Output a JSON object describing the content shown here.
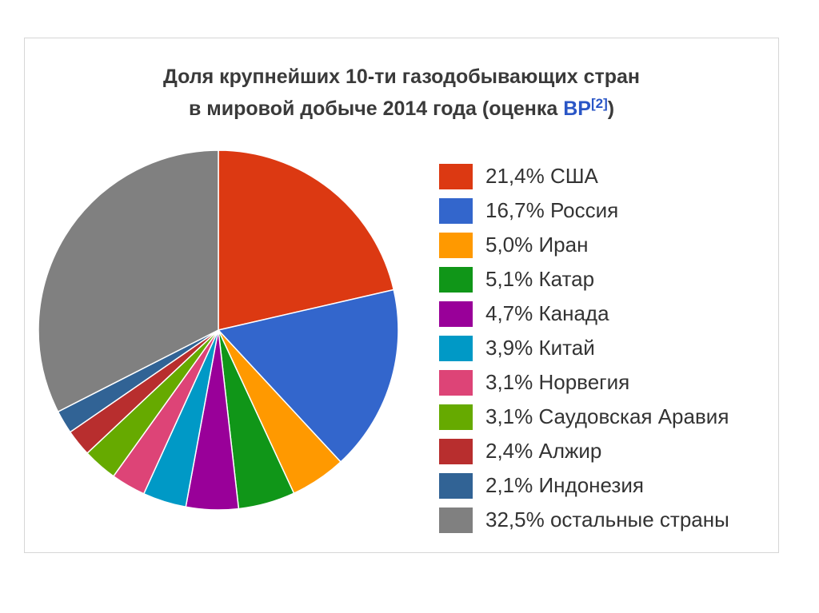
{
  "title": {
    "line1": "Доля крупнейших 10-ти газодобывающих стран",
    "line2_prefix": "в мировой добыче 2014 года (оценка ",
    "source_link": "BP",
    "footnote": "[2]",
    "line2_suffix": ")"
  },
  "chart_data": {
    "type": "pie",
    "title": "Доля крупнейших 10-ти газодобывающих стран в мировой добыче 2014 года (оценка BP[2])",
    "legend_position": "right",
    "start": "top",
    "direction": "clockwise",
    "slices": [
      {
        "label": "21,4% США",
        "value": 21.4,
        "color": "#dc3912"
      },
      {
        "label": "16,7% Россия",
        "value": 16.7,
        "color": "#3366cc"
      },
      {
        "label": "5,0% Иран",
        "value": 5.0,
        "color": "#ff9900"
      },
      {
        "label": "5,1% Катар",
        "value": 5.1,
        "color": "#109618"
      },
      {
        "label": "4,7% Канада",
        "value": 4.7,
        "color": "#990099"
      },
      {
        "label": "3,9% Китай",
        "value": 3.9,
        "color": "#0099c6"
      },
      {
        "label": "3,1% Норвегия",
        "value": 3.1,
        "color": "#dd4477"
      },
      {
        "label": "3,1% Саудовская Аравия",
        "value": 3.1,
        "color": "#66aa00"
      },
      {
        "label": "2,4% Алжир",
        "value": 2.4,
        "color": "#b82e2e"
      },
      {
        "label": "2,1% Индонезия",
        "value": 2.1,
        "color": "#316395"
      },
      {
        "label": "32,5% остальные страны",
        "value": 32.5,
        "color": "#808080"
      }
    ]
  }
}
